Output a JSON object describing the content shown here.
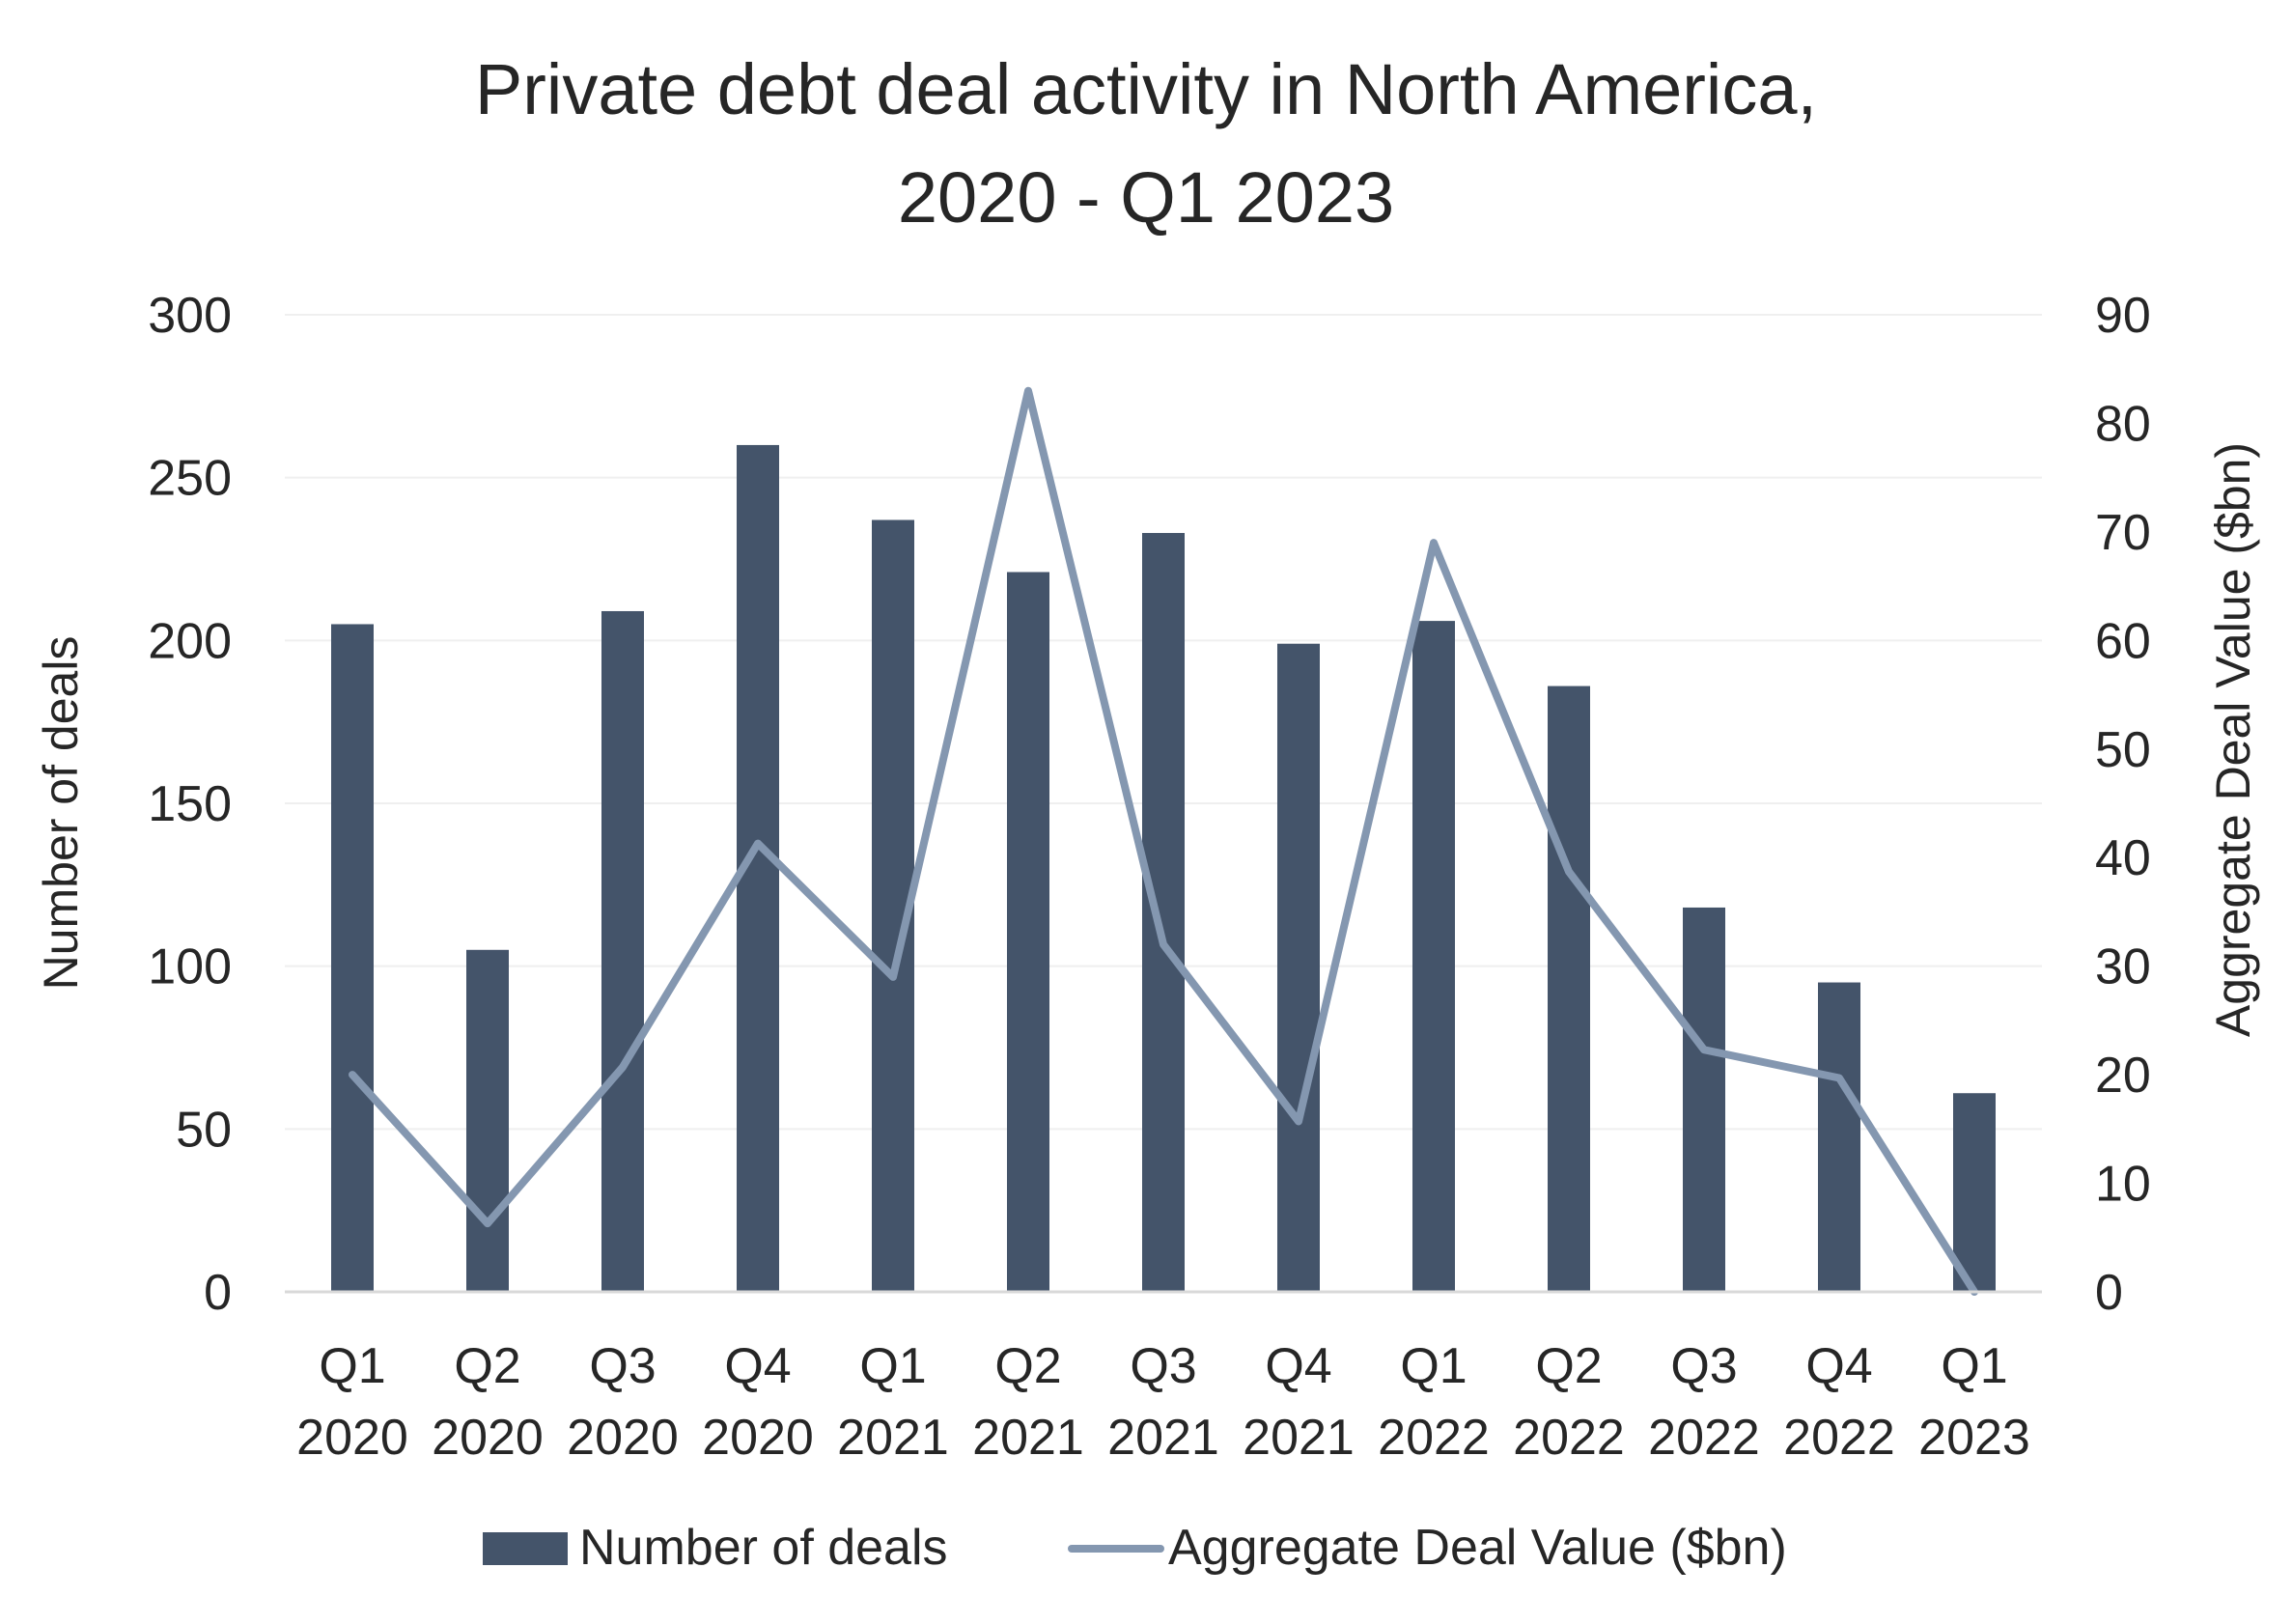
{
  "chart_data": {
    "type": "bar",
    "title_lines": [
      "Private debt deal activity in North America,",
      "2020 - Q1 2023"
    ],
    "categories": [
      [
        "Q1",
        "2020"
      ],
      [
        "Q2",
        "2020"
      ],
      [
        "Q3",
        "2020"
      ],
      [
        "Q4",
        "2020"
      ],
      [
        "Q1",
        "2021"
      ],
      [
        "Q2",
        "2021"
      ],
      [
        "Q3",
        "2021"
      ],
      [
        "Q4",
        "2021"
      ],
      [
        "Q1",
        "2022"
      ],
      [
        "Q2",
        "2022"
      ],
      [
        "Q3",
        "2022"
      ],
      [
        "Q4",
        "2022"
      ],
      [
        "Q1",
        "2023"
      ]
    ],
    "series": [
      {
        "name": "Number of deals",
        "type": "bar",
        "axis": "left",
        "color": "#44546a",
        "values": [
          205,
          105,
          209,
          260,
          237,
          221,
          233,
          199,
          206,
          186,
          118,
          95,
          61
        ]
      },
      {
        "name": "Aggregate Deal Value ($bn)",
        "type": "line",
        "axis": "right",
        "color": "#8497b0",
        "values": [
          20,
          6.3,
          20.7,
          41.3,
          29,
          83,
          32,
          15.7,
          69,
          38.7,
          22.3,
          19.7,
          0
        ]
      }
    ],
    "ylabel": "Number of deals",
    "ylabel_right": "Aggregate Deal Value ($bn)",
    "ylim": [
      0,
      300
    ],
    "ylim_right": [
      0,
      90
    ],
    "yticks": [
      0,
      50,
      100,
      150,
      200,
      250,
      300
    ],
    "yticks_right": [
      0,
      10,
      20,
      30,
      40,
      50,
      60,
      70,
      80,
      90
    ],
    "grid": true,
    "legend_position": "bottom"
  }
}
